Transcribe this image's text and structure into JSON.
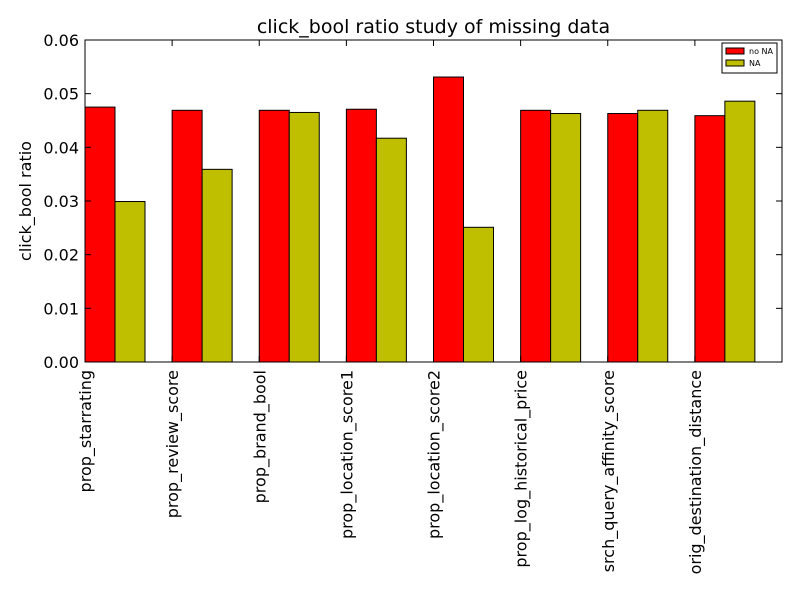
{
  "chart_data": {
    "type": "bar",
    "title": "click_bool ratio study of missing data",
    "xlabel": "",
    "ylabel": "click_bool ratio",
    "ylim": [
      0,
      0.06
    ],
    "yticks": [
      "0.00",
      "0.01",
      "0.02",
      "0.03",
      "0.04",
      "0.05",
      "0.06"
    ],
    "categories": [
      "prop_starrating",
      "prop_review_score",
      "prop_brand_bool",
      "prop_location_score1",
      "prop_location_score2",
      "prop_log_historical_price",
      "srch_query_affinity_score",
      "orig_destination_distance"
    ],
    "series": [
      {
        "name": "no NA",
        "color": "#ff0000",
        "values": [
          0.0475,
          0.0469,
          0.0469,
          0.0471,
          0.0531,
          0.0469,
          0.0463,
          0.0459
        ]
      },
      {
        "name": "NA",
        "color": "#bfbf00",
        "values": [
          0.0299,
          0.0359,
          0.0465,
          0.0417,
          0.0251,
          0.0463,
          0.0469,
          0.0486
        ]
      }
    ],
    "legend_position": "top-right",
    "grid": false
  }
}
